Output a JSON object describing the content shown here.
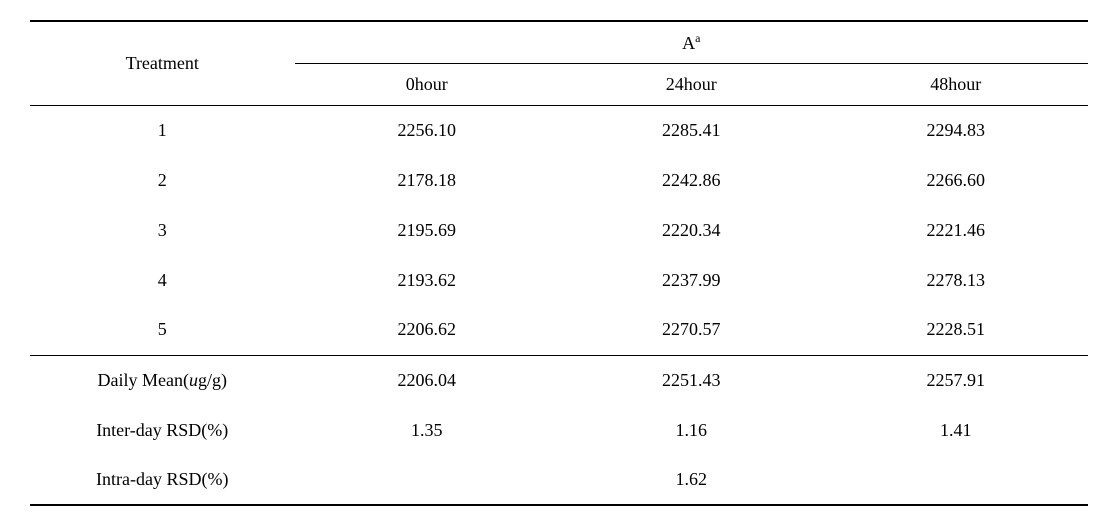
{
  "table": {
    "type": "table",
    "header": {
      "treatment": "Treatment",
      "a_label": "A",
      "a_super": "a",
      "subheaders": [
        "0hour",
        "24hour",
        "48hour"
      ]
    },
    "rows": [
      {
        "treatment": "1",
        "values": [
          "2256.10",
          "2285.41",
          "2294.83"
        ]
      },
      {
        "treatment": "2",
        "values": [
          "2178.18",
          "2242.86",
          "2266.60"
        ]
      },
      {
        "treatment": "3",
        "values": [
          "2195.69",
          "2220.34",
          "2221.46"
        ]
      },
      {
        "treatment": "4",
        "values": [
          "2193.62",
          "2237.99",
          "2278.13"
        ]
      },
      {
        "treatment": "5",
        "values": [
          "2206.62",
          "2270.57",
          "2228.51"
        ]
      }
    ],
    "stats": {
      "daily_mean_label_pre": "Daily Mean(",
      "daily_mean_unit_u": "u",
      "daily_mean_unit_rest": "g/g)",
      "daily_mean_values": [
        "2206.04",
        "2251.43",
        "2257.91"
      ],
      "inter_day_label": "Inter-day RSD(%)",
      "inter_day_values": [
        "1.35",
        "1.16",
        "1.41"
      ],
      "intra_day_label": "Intra-day RSD(%)",
      "intra_day_value": "1.62"
    },
    "styling": {
      "background_color": "#ffffff",
      "text_color": "#000000",
      "font_size": 18,
      "border_color": "#000000",
      "column_widths": [
        "25%",
        "25%",
        "25%",
        "25%"
      ]
    }
  }
}
